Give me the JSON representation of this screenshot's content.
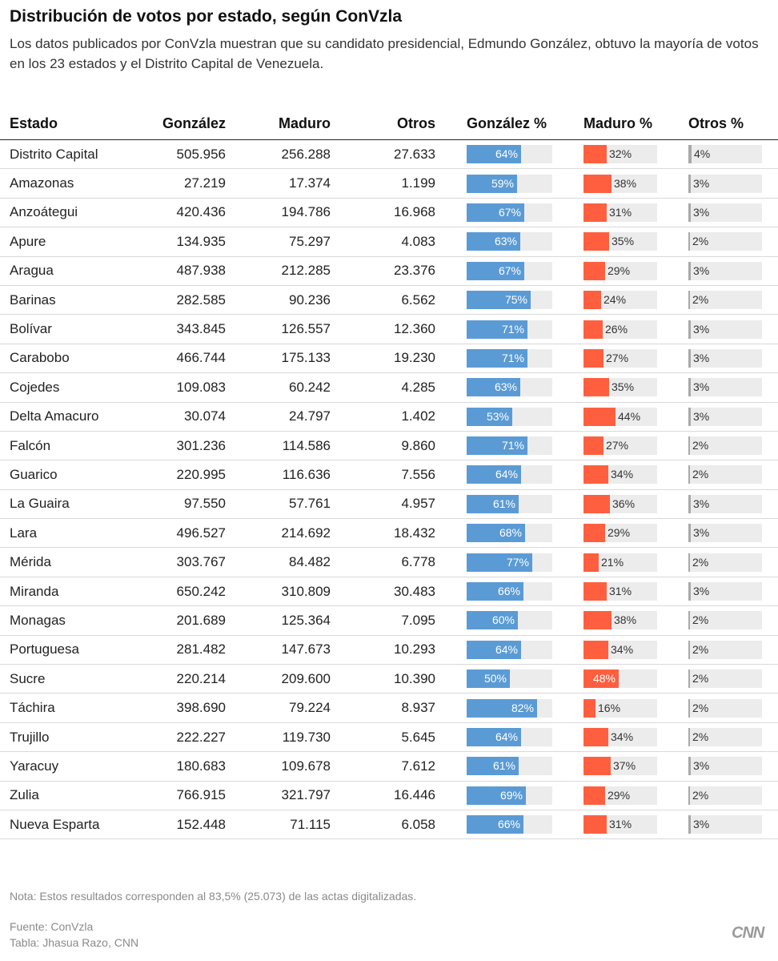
{
  "chart_data": {
    "type": "table",
    "title": "Distribución de votos por estado, según ConVzla",
    "subtitle": "Los datos publicados por ConVzla muestran que su candidato presidencial, Edmundo González, obtuvo la mayoría de votos en los 23 estados y el Distrito Capital de Venezuela.",
    "columns": [
      "Estado",
      "González",
      "Maduro",
      "Otros",
      "González %",
      "Maduro %",
      "Otros %"
    ],
    "rows": [
      {
        "estado": "Distrito Capital",
        "gonzalez": "505.956",
        "maduro": "256.288",
        "otros": "27.633",
        "gonzalez_pct": 64,
        "maduro_pct": 32,
        "otros_pct": 4
      },
      {
        "estado": "Amazonas",
        "gonzalez": "27.219",
        "maduro": "17.374",
        "otros": "1.199",
        "gonzalez_pct": 59,
        "maduro_pct": 38,
        "otros_pct": 3
      },
      {
        "estado": "Anzoátegui",
        "gonzalez": "420.436",
        "maduro": "194.786",
        "otros": "16.968",
        "gonzalez_pct": 67,
        "maduro_pct": 31,
        "otros_pct": 3
      },
      {
        "estado": "Apure",
        "gonzalez": "134.935",
        "maduro": "75.297",
        "otros": "4.083",
        "gonzalez_pct": 63,
        "maduro_pct": 35,
        "otros_pct": 2
      },
      {
        "estado": "Aragua",
        "gonzalez": "487.938",
        "maduro": "212.285",
        "otros": "23.376",
        "gonzalez_pct": 67,
        "maduro_pct": 29,
        "otros_pct": 3
      },
      {
        "estado": "Barinas",
        "gonzalez": "282.585",
        "maduro": "90.236",
        "otros": "6.562",
        "gonzalez_pct": 75,
        "maduro_pct": 24,
        "otros_pct": 2
      },
      {
        "estado": "Bolívar",
        "gonzalez": "343.845",
        "maduro": "126.557",
        "otros": "12.360",
        "gonzalez_pct": 71,
        "maduro_pct": 26,
        "otros_pct": 3
      },
      {
        "estado": "Carabobo",
        "gonzalez": "466.744",
        "maduro": "175.133",
        "otros": "19.230",
        "gonzalez_pct": 71,
        "maduro_pct": 27,
        "otros_pct": 3
      },
      {
        "estado": "Cojedes",
        "gonzalez": "109.083",
        "maduro": "60.242",
        "otros": "4.285",
        "gonzalez_pct": 63,
        "maduro_pct": 35,
        "otros_pct": 3
      },
      {
        "estado": "Delta Amacuro",
        "gonzalez": "30.074",
        "maduro": "24.797",
        "otros": "1.402",
        "gonzalez_pct": 53,
        "maduro_pct": 44,
        "otros_pct": 3
      },
      {
        "estado": "Falcón",
        "gonzalez": "301.236",
        "maduro": "114.586",
        "otros": "9.860",
        "gonzalez_pct": 71,
        "maduro_pct": 27,
        "otros_pct": 2
      },
      {
        "estado": "Guarico",
        "gonzalez": "220.995",
        "maduro": "116.636",
        "otros": "7.556",
        "gonzalez_pct": 64,
        "maduro_pct": 34,
        "otros_pct": 2
      },
      {
        "estado": "La Guaira",
        "gonzalez": "97.550",
        "maduro": "57.761",
        "otros": "4.957",
        "gonzalez_pct": 61,
        "maduro_pct": 36,
        "otros_pct": 3
      },
      {
        "estado": "Lara",
        "gonzalez": "496.527",
        "maduro": "214.692",
        "otros": "18.432",
        "gonzalez_pct": 68,
        "maduro_pct": 29,
        "otros_pct": 3
      },
      {
        "estado": "Mérida",
        "gonzalez": "303.767",
        "maduro": "84.482",
        "otros": "6.778",
        "gonzalez_pct": 77,
        "maduro_pct": 21,
        "otros_pct": 2
      },
      {
        "estado": "Miranda",
        "gonzalez": "650.242",
        "maduro": "310.809",
        "otros": "30.483",
        "gonzalez_pct": 66,
        "maduro_pct": 31,
        "otros_pct": 3
      },
      {
        "estado": "Monagas",
        "gonzalez": "201.689",
        "maduro": "125.364",
        "otros": "7.095",
        "gonzalez_pct": 60,
        "maduro_pct": 38,
        "otros_pct": 2
      },
      {
        "estado": "Portuguesa",
        "gonzalez": "281.482",
        "maduro": "147.673",
        "otros": "10.293",
        "gonzalez_pct": 64,
        "maduro_pct": 34,
        "otros_pct": 2
      },
      {
        "estado": "Sucre",
        "gonzalez": "220.214",
        "maduro": "209.600",
        "otros": "10.390",
        "gonzalez_pct": 50,
        "maduro_pct": 48,
        "otros_pct": 2
      },
      {
        "estado": "Táchira",
        "gonzalez": "398.690",
        "maduro": "79.224",
        "otros": "8.937",
        "gonzalez_pct": 82,
        "maduro_pct": 16,
        "otros_pct": 2
      },
      {
        "estado": "Trujillo",
        "gonzalez": "222.227",
        "maduro": "119.730",
        "otros": "5.645",
        "gonzalez_pct": 64,
        "maduro_pct": 34,
        "otros_pct": 2
      },
      {
        "estado": "Yaracuy",
        "gonzalez": "180.683",
        "maduro": "109.678",
        "otros": "7.612",
        "gonzalez_pct": 61,
        "maduro_pct": 37,
        "otros_pct": 3
      },
      {
        "estado": "Zulia",
        "gonzalez": "766.915",
        "maduro": "321.797",
        "otros": "16.446",
        "gonzalez_pct": 69,
        "maduro_pct": 29,
        "otros_pct": 2
      },
      {
        "estado": "Nueva Esparta",
        "gonzalez": "152.448",
        "maduro": "71.115",
        "otros": "6.058",
        "gonzalez_pct": 66,
        "maduro_pct": 31,
        "otros_pct": 3
      }
    ],
    "pct_range": [
      0,
      100
    ],
    "colors": {
      "gonzalez": "#5b9bd5",
      "maduro": "#ff5f3f",
      "otros": "#a9a9a9",
      "bar_background": "#ececec"
    }
  },
  "footer": {
    "note": "Nota: Estos resultados corresponden al 83,5% (25.073) de las actas digitalizadas.",
    "source": "Fuente: ConVzla",
    "credit": "Tabla: Jhasua Razo, CNN",
    "logo": "CNN"
  }
}
